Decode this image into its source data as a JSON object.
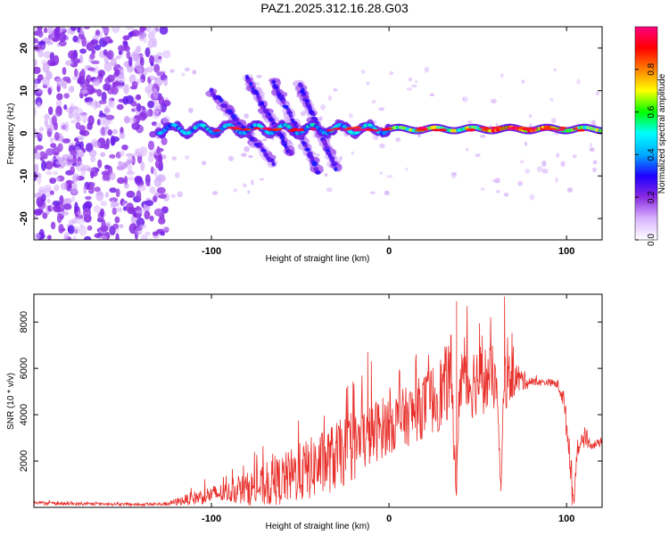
{
  "title": "PAZ1.2025.312.16.28.G03",
  "colors": {
    "snr_line": "#e8302b",
    "frame": "#000000"
  },
  "chart_data": [
    {
      "type": "heatmap",
      "xlabel": "Height of straight line (km)",
      "ylabel": "Frequency (Hz)",
      "xlim": [
        -200,
        120
      ],
      "ylim": [
        -25,
        25
      ],
      "x_ticks": [
        -100,
        0,
        100
      ],
      "y_ticks": [
        -20,
        -10,
        0,
        10,
        20
      ],
      "colorbar": {
        "label": "Normalized spectral amplitude",
        "range": [
          0,
          1
        ],
        "ticks": [
          0.0,
          0.2,
          0.4,
          0.6,
          0.8
        ],
        "tick_labels": [
          "0.0",
          "0.2",
          "0.4",
          "0.6",
          "0.8"
        ],
        "colormap": [
          "#ffffff",
          "#d9b3ff",
          "#8a2be2",
          "#1f00ff",
          "#00aaff",
          "#00ffff",
          "#00ff00",
          "#ffff00",
          "#ff8000",
          "#ff0000",
          "#ff0080"
        ]
      },
      "features": {
        "noise_region_x": [
          -200,
          -125
        ],
        "main_band": {
          "x": [
            -130,
            120
          ],
          "freq_center": 1.0,
          "amplitude": 0.85
        },
        "diagonal_streaks": [
          {
            "x_start": -100,
            "x_end": -65,
            "f_start": 10,
            "f_end": -7
          },
          {
            "x_start": -80,
            "x_end": -55,
            "f_start": 13,
            "f_end": -5
          },
          {
            "x_start": -65,
            "x_end": -40,
            "f_start": 12,
            "f_end": -9
          },
          {
            "x_start": -50,
            "x_end": -30,
            "f_start": 11,
            "f_end": -8
          }
        ]
      }
    },
    {
      "type": "line",
      "xlabel": "Height of straight line (km)",
      "ylabel": "SNR (10 * v/v)",
      "xlim": [
        -200,
        120
      ],
      "ylim": [
        0,
        9200
      ],
      "x_ticks": [
        -100,
        0,
        100
      ],
      "y_ticks": [
        2000,
        4000,
        6000,
        8000
      ],
      "series": [
        {
          "x": [
            -200,
            -180,
            -160,
            -140,
            -125,
            -110,
            -100,
            -90,
            -80,
            -70,
            -60,
            -50,
            -40,
            -30,
            -20,
            -10,
            0,
            10,
            20,
            30,
            35,
            38,
            40,
            45,
            50,
            55,
            60,
            63,
            65,
            70,
            75,
            80,
            85,
            90,
            95,
            98,
            100,
            102,
            104,
            106,
            110,
            115,
            120
          ],
          "values": [
            200,
            150,
            150,
            120,
            150,
            400,
            550,
            650,
            800,
            900,
            1200,
            1500,
            1800,
            2200,
            2600,
            3200,
            3600,
            3900,
            4400,
            5000,
            5700,
            600,
            5900,
            5300,
            5600,
            5500,
            5600,
            800,
            5500,
            5600,
            5500,
            5400,
            5400,
            5400,
            5300,
            4800,
            3500,
            2200,
            150,
            2600,
            2900,
            2700,
            2800
          ],
          "noise_amplitude": [
            80,
            60,
            60,
            50,
            80,
            300,
            400,
            450,
            700,
            900,
            1100,
            1300,
            1400,
            1500,
            1500,
            1400,
            1300,
            1300,
            1400,
            1700,
            1800,
            400,
            1800,
            1600,
            1600,
            1500,
            1400,
            300,
            1400,
            900,
            500,
            200,
            150,
            150,
            200,
            500,
            600,
            800,
            300,
            400,
            300,
            200,
            150
          ],
          "spikes": [
            {
              "x": -10,
              "value": 6300
            },
            {
              "x": 38,
              "value": 8900
            },
            {
              "x": 65,
              "value": 9100
            },
            {
              "x": 63,
              "value": 700
            },
            {
              "x": 38,
              "value": 600
            },
            {
              "x": 103,
              "value": 100
            },
            {
              "x": -12,
              "value": 6700
            }
          ]
        }
      ]
    }
  ]
}
